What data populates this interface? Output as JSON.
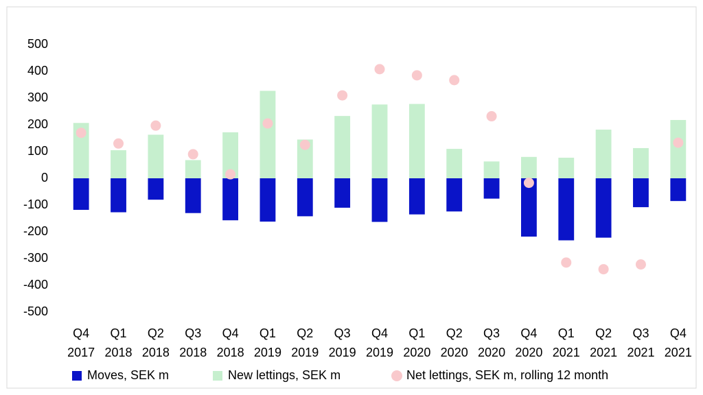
{
  "chart_data": {
    "type": "bar",
    "categories": [
      [
        "Q4",
        "2017"
      ],
      [
        "Q1",
        "2018"
      ],
      [
        "Q2",
        "2018"
      ],
      [
        "Q3",
        "2018"
      ],
      [
        "Q4",
        "2018"
      ],
      [
        "Q1",
        "2019"
      ],
      [
        "Q2",
        "2019"
      ],
      [
        "Q3",
        "2019"
      ],
      [
        "Q4",
        "2019"
      ],
      [
        "Q1",
        "2020"
      ],
      [
        "Q2",
        "2020"
      ],
      [
        "Q3",
        "2020"
      ],
      [
        "Q4",
        "2020"
      ],
      [
        "Q1",
        "2021"
      ],
      [
        "Q2",
        "2021"
      ],
      [
        "Q3",
        "2021"
      ],
      [
        "Q4",
        "2021"
      ]
    ],
    "series": [
      {
        "name": "Moves, SEK m",
        "color": "#0a14c8",
        "type": "bar",
        "values": [
          -118,
          -127,
          -80,
          -130,
          -157,
          -162,
          -142,
          -110,
          -163,
          -135,
          -124,
          -76,
          -218,
          -232,
          -222,
          -108,
          -85
        ]
      },
      {
        "name": "New lettings, SEK m",
        "color": "#c6efce",
        "type": "bar",
        "values": [
          207,
          105,
          163,
          68,
          172,
          327,
          145,
          233,
          276,
          278,
          110,
          63,
          80,
          77,
          182,
          113,
          218
        ]
      },
      {
        "name": "Net lettings, SEK m, rolling 12 month",
        "color": "#f9c9cc",
        "type": "scatter",
        "values": [
          170,
          130,
          197,
          90,
          15,
          205,
          125,
          310,
          408,
          385,
          367,
          232,
          -17,
          -315,
          -340,
          -322,
          133
        ]
      }
    ],
    "ylim": [
      -500,
      500
    ],
    "yticks": [
      -500,
      -400,
      -300,
      -200,
      -100,
      0,
      100,
      200,
      300,
      400,
      500
    ],
    "grid": false,
    "legend": "bottom"
  }
}
